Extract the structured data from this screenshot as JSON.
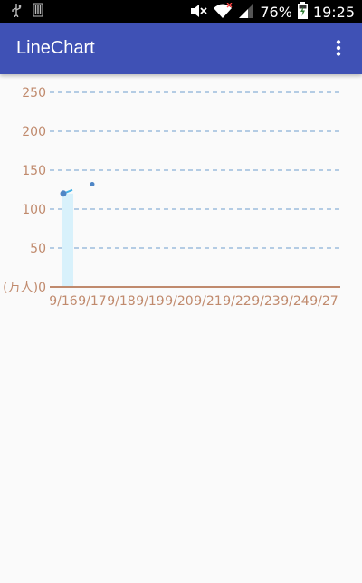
{
  "status_bar": {
    "battery_text": "76%",
    "time": "19:25",
    "icons": [
      "usb-icon",
      "sim-icon",
      "mute-icon",
      "wifi-icon",
      "signal-icon",
      "battery-charging-icon"
    ]
  },
  "app_bar": {
    "title": "LineChart",
    "menu_icon": "overflow-menu-icon",
    "color": "#3f51b5"
  },
  "colors": {
    "axis": "#c08a6d",
    "grid": "#6d9fcf",
    "line": "#49b3e6",
    "point": "#4f86c6",
    "fill": "#d8f1fb"
  },
  "chart_data": {
    "type": "line",
    "x": [
      "9/16",
      "9/17",
      "9/18",
      "9/19",
      "9/20",
      "9/21",
      "9/22",
      "9/23",
      "9/24",
      "9/27"
    ],
    "tick_labels": [
      "9/16",
      "9/17",
      "9/18",
      "9/19",
      "9/20",
      "9/21",
      "9/22",
      "9/23",
      "9/24",
      "9/27"
    ],
    "y_unit_label": "(万人)",
    "ylim": [
      0,
      250
    ],
    "yticks": [
      0,
      50,
      100,
      150,
      200,
      250
    ],
    "grid": "horizontal-dashed",
    "series": [
      {
        "points": [
          {
            "x": "9/16",
            "y": 120
          },
          {
            "x": "9/17",
            "y": 132
          }
        ]
      }
    ]
  }
}
